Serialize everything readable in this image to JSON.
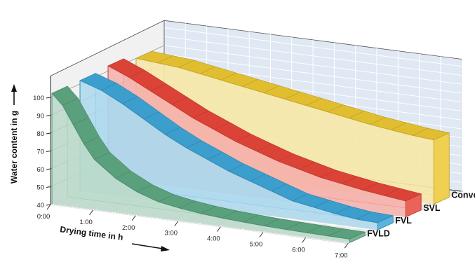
{
  "chart_data": {
    "type": "area",
    "xlabel": "Drying time in h",
    "ylabel": "Water content in g",
    "x_ticks": [
      "0:00",
      "1:00",
      "2:00",
      "3:00",
      "4:00",
      "5:00",
      "6:00",
      "7:00"
    ],
    "y_ticks": [
      "40",
      "50",
      "60",
      "70",
      "80",
      "90",
      "100"
    ],
    "xlim": [
      0,
      7
    ],
    "ylim": [
      40,
      100
    ],
    "grid": true,
    "series": [
      {
        "name": "FVLD",
        "color": "#5fa882",
        "x": [
          0,
          0.25,
          0.5,
          0.75,
          1,
          1.5,
          2,
          2.5,
          3,
          3.5,
          4,
          4.5,
          5,
          5.5,
          6,
          6.5,
          7
        ],
        "values": [
          102,
          96,
          86,
          76,
          68,
          59,
          53,
          49,
          47,
          45.5,
          44.5,
          43.8,
          43.2,
          42.8,
          42.5,
          42.2,
          42
        ]
      },
      {
        "name": "FVL",
        "color": "#3ea6d8",
        "x": [
          0,
          0.5,
          1,
          1.5,
          2,
          2.5,
          3,
          3.5,
          4,
          4.5,
          5,
          5.5,
          6,
          6.5,
          7
        ],
        "values": [
          102,
          98,
          92,
          85,
          78,
          72,
          67,
          62,
          58,
          54,
          50,
          48,
          46,
          44.5,
          44
        ]
      },
      {
        "name": "SVL",
        "color": "#e8463a",
        "x": [
          0,
          0.5,
          1,
          1.5,
          2,
          2.5,
          3,
          3.5,
          4,
          4.5,
          5,
          5.5,
          6,
          6.5,
          7
        ],
        "values": [
          103,
          98,
          92,
          86,
          80,
          75,
          70,
          66,
          62,
          59,
          56,
          54,
          52,
          50.5,
          49
        ]
      },
      {
        "name": "Conventional",
        "color": "#ecc832",
        "x": [
          0,
          0.5,
          1,
          1.5,
          2,
          2.5,
          3,
          3.5,
          4,
          4.5,
          5,
          5.5,
          6,
          6.5,
          7
        ],
        "values": [
          100,
          99,
          98,
          96,
          94,
          92,
          90,
          88,
          86,
          84,
          82,
          80,
          78.5,
          77,
          76
        ]
      }
    ]
  }
}
